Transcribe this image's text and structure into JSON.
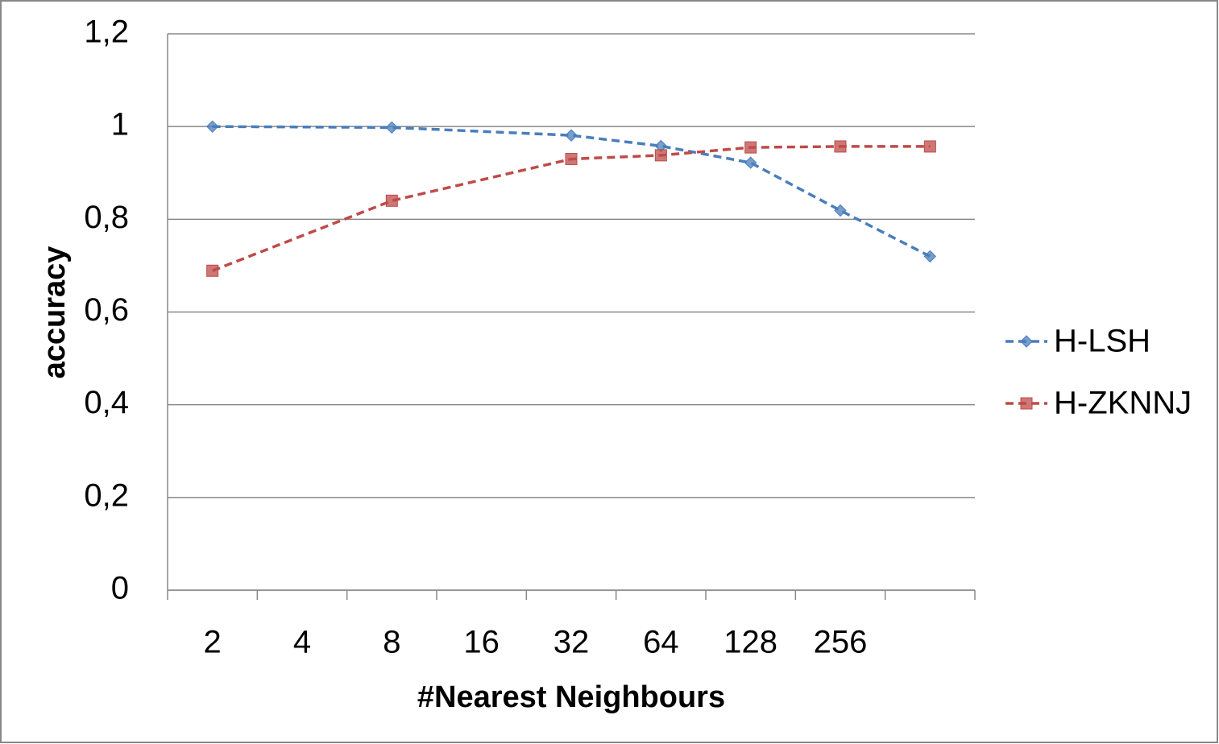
{
  "chart_data": {
    "type": "line",
    "ylabel": "accuracy",
    "xlabel": "#Nearest Neighbours",
    "categories": [
      "2",
      "4",
      "8",
      "16",
      "32",
      "64",
      "128",
      "256",
      null
    ],
    "series": [
      {
        "name": "H-LSH",
        "color": "#4a7ebb",
        "marker": "diamond",
        "values": [
          1.0,
          null,
          0.998,
          null,
          0.981,
          0.958,
          0.922,
          0.819,
          0.72
        ]
      },
      {
        "name": "H-ZKNNJ",
        "color": "#be4b48",
        "marker": "square",
        "values": [
          0.689,
          null,
          0.84,
          null,
          0.93,
          0.938,
          0.955,
          0.957,
          0.957
        ]
      }
    ],
    "ylim": [
      0,
      1.2
    ],
    "yticks": [
      0,
      {
        "value": 0.2,
        "label": "0,2"
      },
      {
        "value": 0.4,
        "label": "0,4"
      },
      {
        "value": 0.6,
        "label": "0,6"
      },
      {
        "value": 0.8,
        "label": "0,8"
      },
      1,
      {
        "value": 1.2,
        "label": "1,2"
      }
    ],
    "grid": true,
    "line_style": "dashed",
    "connect_gaps": true,
    "legend": "right"
  }
}
